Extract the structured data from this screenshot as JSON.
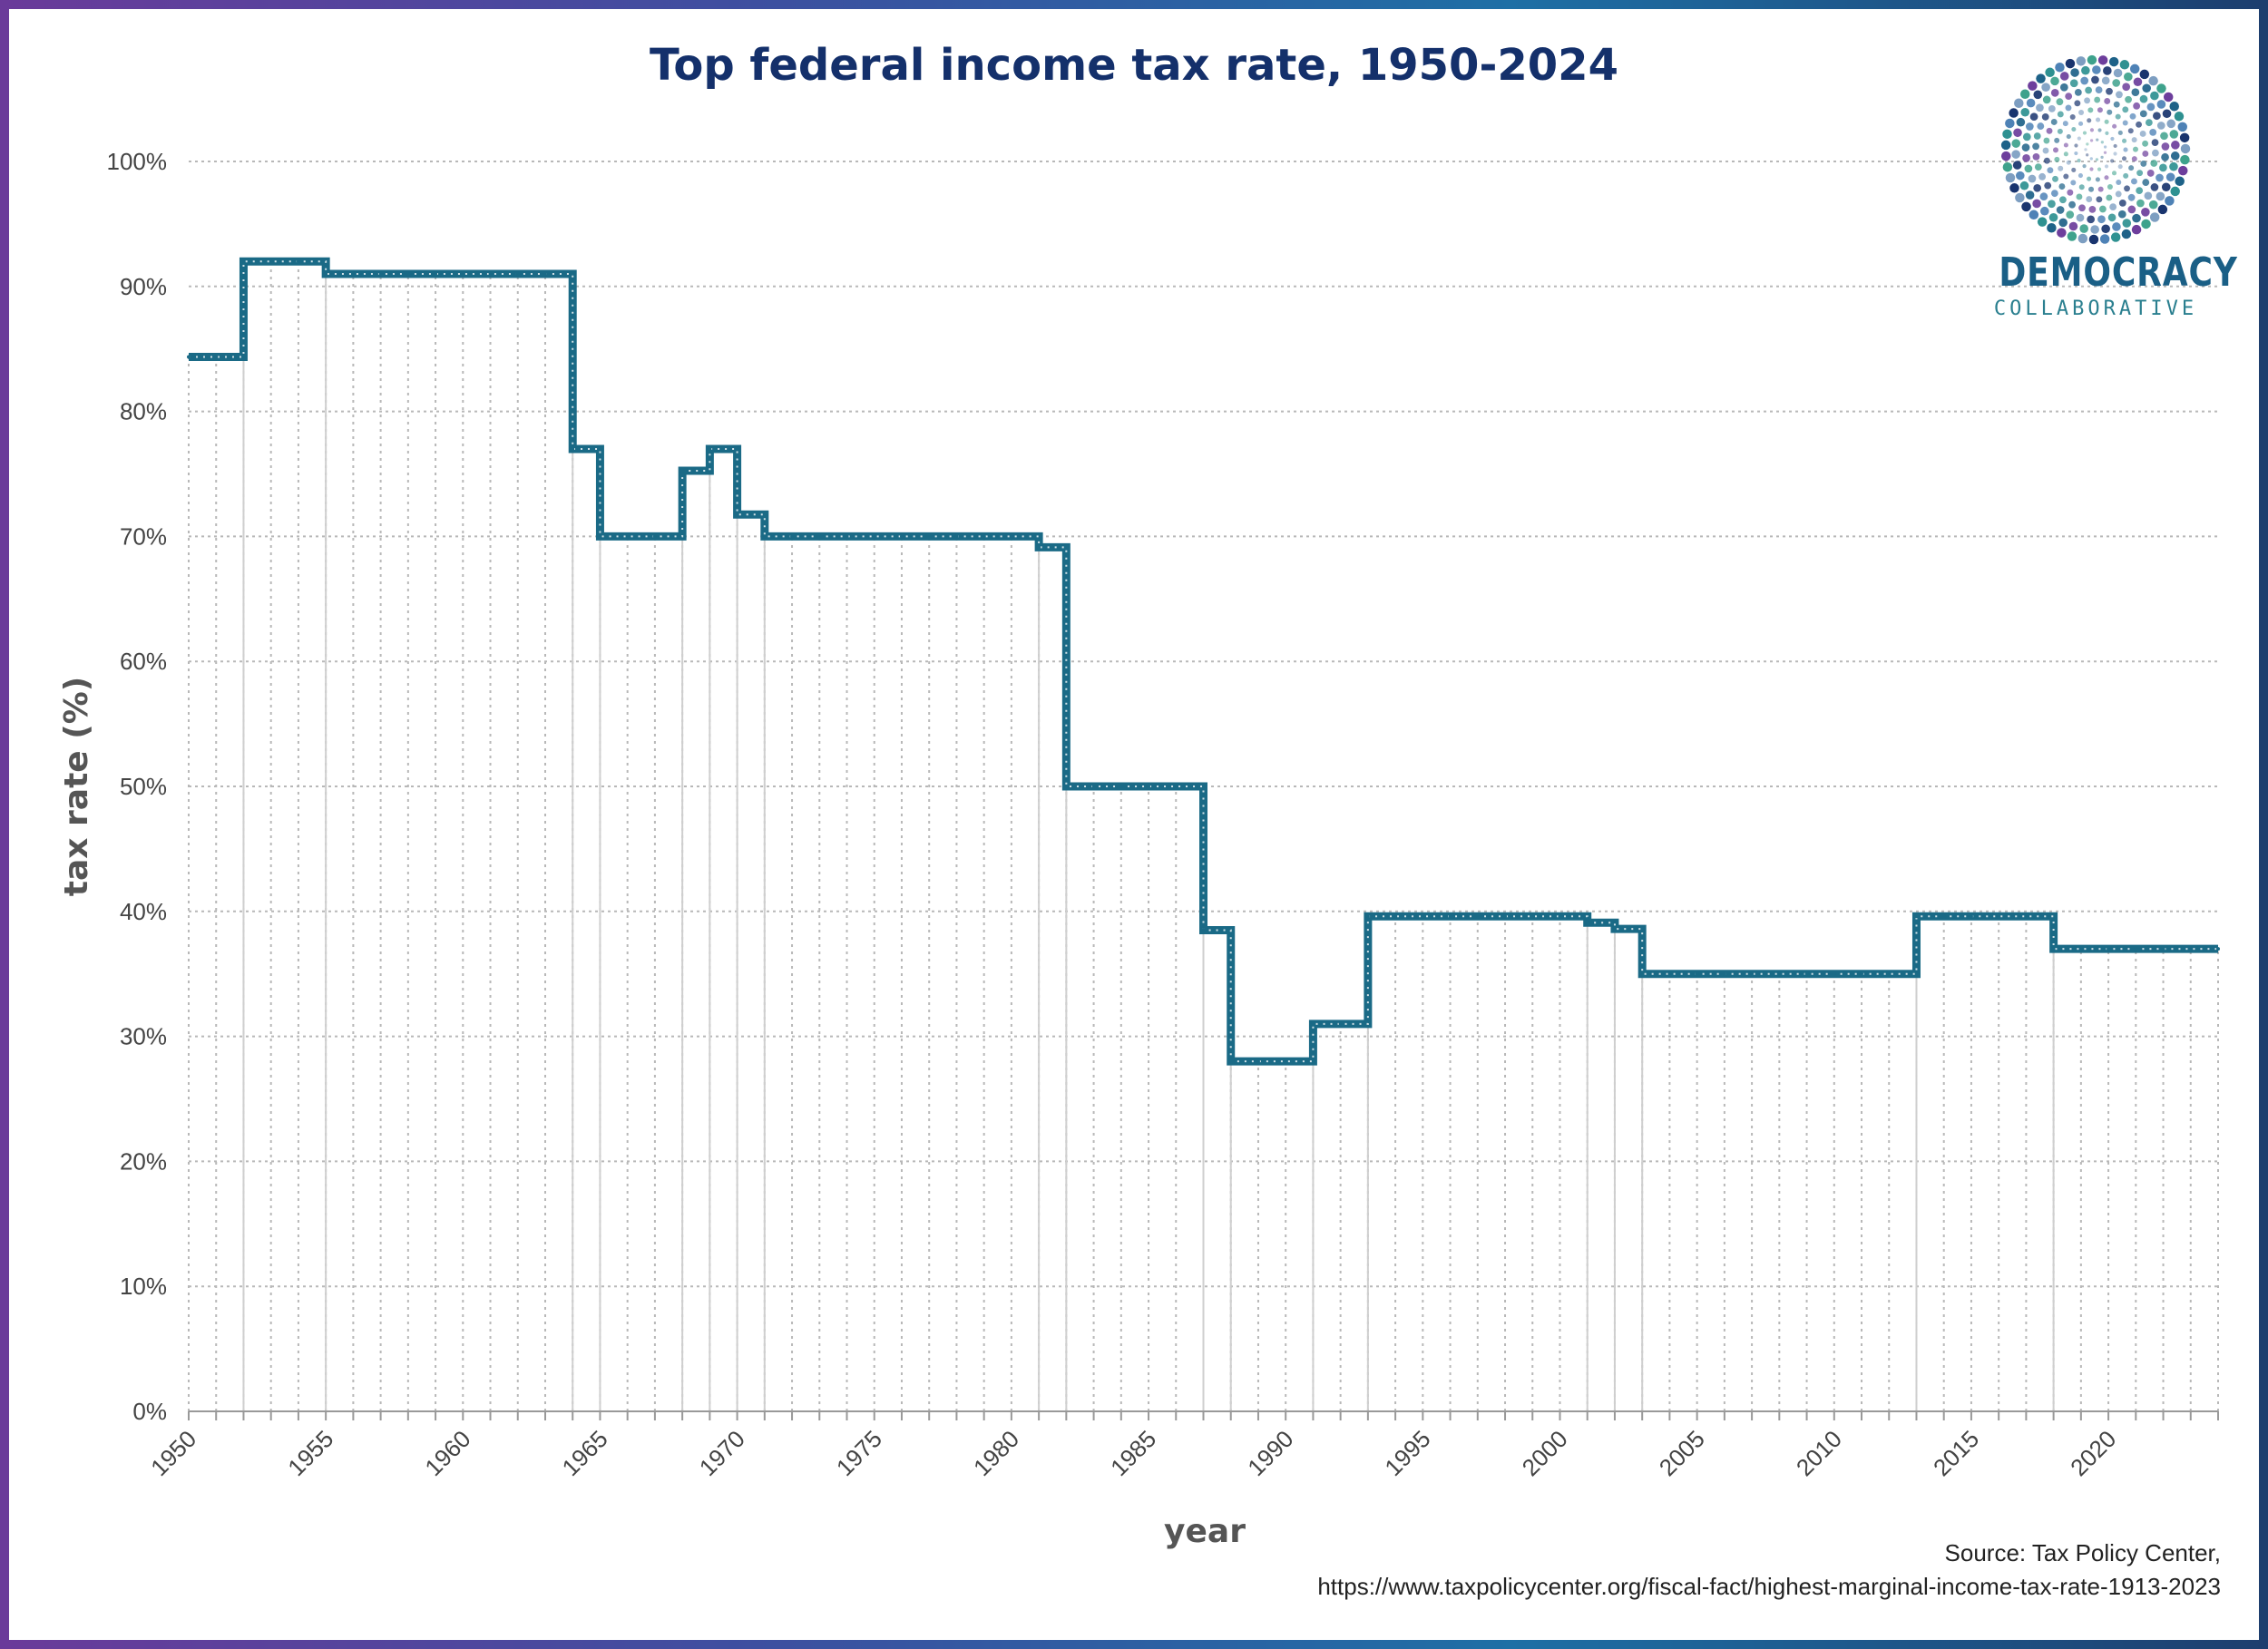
{
  "title": "Top federal income tax rate, 1950-2024",
  "source": {
    "line1": "Source: Tax Policy Center,",
    "line2": "https://www.taxpolicycenter.org/fiscal-fact/highest-marginal-income-tax-rate-1913-2023"
  },
  "logo": {
    "word1": "DEMOCRACY",
    "word2": "COLLABORATIVE",
    "icon": "dot-burst-logo-icon"
  },
  "colors": {
    "line": "#1a6a86",
    "title": "#14306b",
    "grid": "#b8b8b8",
    "frame_start": "#6a3a9a",
    "frame_end": "#1d3e6e"
  },
  "chart_data": {
    "type": "line",
    "title": "Top federal income tax rate, 1950-2024",
    "xlabel": "year",
    "ylabel": "tax rate (%)",
    "xlim": [
      1950,
      2024
    ],
    "ylim": [
      0,
      100
    ],
    "y_ticks": [
      "0%",
      "10%",
      "20%",
      "30%",
      "40%",
      "50%",
      "60%",
      "70%",
      "80%",
      "90%",
      "100%"
    ],
    "x_ticks": [
      "1950",
      "1955",
      "1960",
      "1965",
      "1970",
      "1975",
      "1980",
      "1985",
      "1990",
      "1995",
      "2000",
      "2005",
      "2010",
      "2015",
      "2020"
    ],
    "grid": true,
    "legend": "none",
    "series": [
      {
        "x": [
          1950,
          1951,
          1952,
          1953,
          1954,
          1955,
          1956,
          1957,
          1958,
          1959,
          1960,
          1961,
          1962,
          1963,
          1964,
          1965,
          1966,
          1967,
          1968,
          1969,
          1970,
          1971,
          1972,
          1973,
          1974,
          1975,
          1976,
          1977,
          1978,
          1979,
          1980,
          1981,
          1982,
          1983,
          1984,
          1985,
          1986,
          1987,
          1988,
          1989,
          1990,
          1991,
          1992,
          1993,
          1994,
          1995,
          1996,
          1997,
          1998,
          1999,
          2000,
          2001,
          2002,
          2003,
          2004,
          2005,
          2006,
          2007,
          2008,
          2009,
          2010,
          2011,
          2012,
          2013,
          2014,
          2015,
          2016,
          2017,
          2018,
          2019,
          2020,
          2021,
          2022,
          2023,
          2024
        ],
        "values": [
          84.36,
          84.36,
          92,
          92,
          92,
          91,
          91,
          91,
          91,
          91,
          91,
          91,
          91,
          91,
          77,
          70,
          70,
          70,
          75.25,
          77,
          71.75,
          70,
          70,
          70,
          70,
          70,
          70,
          70,
          70,
          70,
          70,
          69.13,
          50,
          50,
          50,
          50,
          50,
          38.5,
          28,
          28,
          28,
          31,
          31,
          39.6,
          39.6,
          39.6,
          39.6,
          39.6,
          39.6,
          39.6,
          39.6,
          39.1,
          38.6,
          35,
          35,
          35,
          35,
          35,
          35,
          35,
          35,
          35,
          35,
          39.6,
          39.6,
          39.6,
          39.6,
          39.6,
          37,
          37,
          37,
          37,
          37,
          37,
          37
        ]
      }
    ]
  }
}
